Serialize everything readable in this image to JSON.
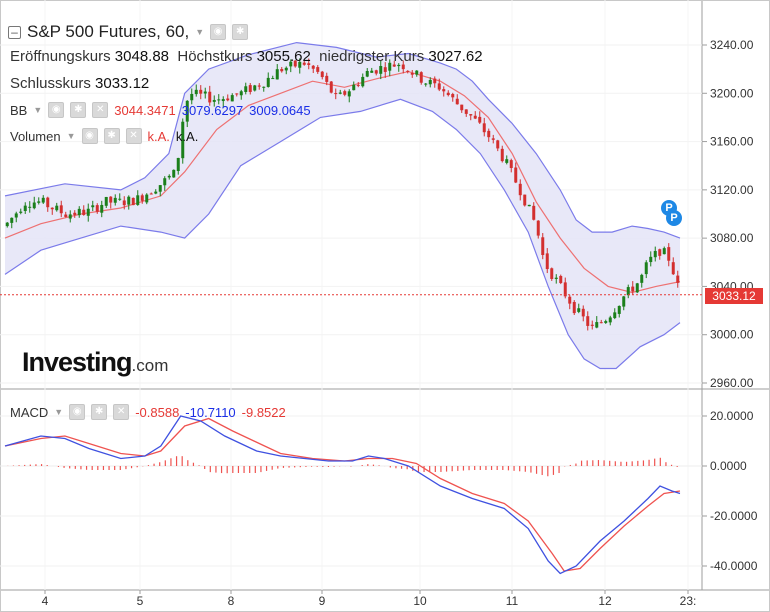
{
  "header": {
    "title": "S&P 500 Futures, 60,",
    "open_label": "Eröffnungskurs",
    "open_value": "3048.88",
    "high_label": "Höchstkurs",
    "high_value": "3055.62",
    "low_label": "niedrigster Kurs",
    "low_value": "3027.62",
    "close_label": "Schlusskurs",
    "close_value": "3033.12"
  },
  "indicators": {
    "bb_label": "BB",
    "bb_middle": "3044.3471",
    "bb_upper": "3079.6297",
    "bb_lower": "3009.0645",
    "volume_label": "Volumen",
    "volume_v1": "k.A.",
    "volume_v2": "k.A.",
    "macd_label": "MACD",
    "macd_hist": "-0.8588",
    "macd_line": "-10.7110",
    "macd_signal": "-9.8522"
  },
  "logo": {
    "main": "Investing",
    "suffix": ".com"
  },
  "current_price_label": "3033.12",
  "badge_label": "P",
  "colors": {
    "up": "#1b7f1b",
    "down": "#d32f2f",
    "bb_band": "#7b7bea",
    "bb_fill": "#e4e4f7",
    "bb_mid": "#ef5350",
    "macd": "#3f51e0",
    "signal": "#ef5350",
    "hist": "#ef5350"
  },
  "chart_data": [
    {
      "type": "candlestick",
      "title": "S&P 500 Futures, 60,",
      "x_ticks": [
        "4",
        "5",
        "8",
        "9",
        "10",
        "11",
        "12",
        "23:"
      ],
      "y_ticks": [
        "3240.00",
        "3200.00",
        "3160.00",
        "3120.00",
        "3080.00",
        "3040.00",
        "3000.00",
        "2960.00"
      ],
      "ylim": [
        2955,
        3255
      ],
      "current_price": 3033.12,
      "close_path": [
        [
          3.55,
          3090
        ],
        [
          3.8,
          3110
        ],
        [
          4.0,
          3110
        ],
        [
          4.3,
          3100
        ],
        [
          4.6,
          3102
        ],
        [
          4.8,
          3110
        ],
        [
          5.0,
          3110
        ],
        [
          5.2,
          3112
        ],
        [
          5.5,
          3125
        ],
        [
          5.7,
          3135
        ],
        [
          5.75,
          3170
        ],
        [
          5.85,
          3200
        ],
        [
          6.2,
          3195
        ],
        [
          6.5,
          3200
        ],
        [
          6.8,
          3210
        ],
        [
          7.0,
          3220
        ],
        [
          7.3,
          3225
        ],
        [
          7.5,
          3215
        ],
        [
          7.7,
          3195
        ],
        [
          7.9,
          3205
        ],
        [
          8.1,
          3218
        ],
        [
          8.3,
          3222
        ],
        [
          8.5,
          3225
        ],
        [
          8.6,
          3220
        ],
        [
          8.8,
          3210
        ],
        [
          9.0,
          3205
        ],
        [
          9.2,
          3192
        ],
        [
          9.4,
          3180
        ],
        [
          9.6,
          3165
        ],
        [
          9.8,
          3145
        ],
        [
          10.0,
          3120
        ],
        [
          10.2,
          3090
        ],
        [
          10.3,
          3060
        ],
        [
          10.5,
          3040
        ],
        [
          10.7,
          3020
        ],
        [
          10.9,
          3005
        ],
        [
          11.1,
          3015
        ],
        [
          11.3,
          3032
        ],
        [
          11.5,
          3045
        ],
        [
          11.6,
          3060
        ],
        [
          11.75,
          3070
        ],
        [
          11.85,
          3065
        ],
        [
          11.93,
          3050
        ],
        [
          12.0,
          3033
        ]
      ],
      "bollinger": {
        "upper": [
          [
            3.55,
            3115
          ],
          [
            4.3,
            3125
          ],
          [
            5.0,
            3120
          ],
          [
            5.3,
            3130
          ],
          [
            5.6,
            3150
          ],
          [
            5.8,
            3200
          ],
          [
            6.1,
            3220
          ],
          [
            6.6,
            3232
          ],
          [
            7.2,
            3242
          ],
          [
            7.7,
            3238
          ],
          [
            8.2,
            3230
          ],
          [
            8.6,
            3233
          ],
          [
            9.0,
            3225
          ],
          [
            9.2,
            3220
          ],
          [
            9.4,
            3210
          ],
          [
            9.6,
            3195
          ],
          [
            9.9,
            3175
          ],
          [
            10.2,
            3150
          ],
          [
            10.5,
            3120
          ],
          [
            10.7,
            3095
          ],
          [
            10.9,
            3085
          ],
          [
            11.15,
            3085
          ],
          [
            11.4,
            3090
          ],
          [
            11.6,
            3088
          ],
          [
            11.8,
            3085
          ],
          [
            12.0,
            3080
          ]
        ],
        "middle": [
          [
            3.55,
            3080
          ],
          [
            4.0,
            3092
          ],
          [
            4.5,
            3100
          ],
          [
            5.0,
            3105
          ],
          [
            5.5,
            3115
          ],
          [
            5.8,
            3135
          ],
          [
            6.2,
            3170
          ],
          [
            6.6,
            3190
          ],
          [
            7.0,
            3200
          ],
          [
            7.4,
            3210
          ],
          [
            7.8,
            3205
          ],
          [
            8.2,
            3212
          ],
          [
            8.6,
            3218
          ],
          [
            9.0,
            3210
          ],
          [
            9.3,
            3198
          ],
          [
            9.6,
            3180
          ],
          [
            9.9,
            3150
          ],
          [
            10.2,
            3110
          ],
          [
            10.5,
            3080
          ],
          [
            10.8,
            3055
          ],
          [
            11.1,
            3040
          ],
          [
            11.4,
            3035
          ],
          [
            11.7,
            3040
          ],
          [
            12.0,
            3044
          ]
        ],
        "lower": [
          [
            3.55,
            3050
          ],
          [
            4.0,
            3070
          ],
          [
            4.5,
            3080
          ],
          [
            5.0,
            3090
          ],
          [
            5.5,
            3085
          ],
          [
            5.8,
            3080
          ],
          [
            6.1,
            3100
          ],
          [
            6.5,
            3140
          ],
          [
            7.0,
            3160
          ],
          [
            7.5,
            3180
          ],
          [
            8.0,
            3185
          ],
          [
            8.5,
            3195
          ],
          [
            8.9,
            3185
          ],
          [
            9.2,
            3170
          ],
          [
            9.5,
            3150
          ],
          [
            9.8,
            3120
          ],
          [
            10.1,
            3085
          ],
          [
            10.35,
            3040
          ],
          [
            10.6,
            3000
          ],
          [
            10.8,
            2980
          ],
          [
            11.0,
            2972
          ],
          [
            11.2,
            2972
          ],
          [
            11.5,
            2990
          ],
          [
            11.8,
            3000
          ],
          [
            12.0,
            3010
          ]
        ]
      }
    },
    {
      "type": "line",
      "title": "MACD",
      "y_ticks": [
        "20.0000",
        "0.0000",
        "-20.0000",
        "-40.0000"
      ],
      "ylim": [
        -45,
        23
      ],
      "macd": [
        [
          3.55,
          8
        ],
        [
          4.0,
          12
        ],
        [
          4.3,
          11
        ],
        [
          4.6,
          7
        ],
        [
          5.0,
          3
        ],
        [
          5.3,
          4
        ],
        [
          5.5,
          8
        ],
        [
          5.75,
          20
        ],
        [
          6.0,
          18
        ],
        [
          6.3,
          12
        ],
        [
          6.7,
          6
        ],
        [
          7.0,
          4
        ],
        [
          7.3,
          3
        ],
        [
          7.6,
          2
        ],
        [
          7.9,
          2
        ],
        [
          8.1,
          4
        ],
        [
          8.3,
          3
        ],
        [
          8.6,
          0
        ],
        [
          9.0,
          -8
        ],
        [
          9.4,
          -13
        ],
        [
          9.8,
          -17
        ],
        [
          10.1,
          -25
        ],
        [
          10.35,
          -38
        ],
        [
          10.5,
          -43
        ],
        [
          10.7,
          -40
        ],
        [
          11.0,
          -30
        ],
        [
          11.3,
          -22
        ],
        [
          11.6,
          -13
        ],
        [
          11.75,
          -8
        ],
        [
          11.9,
          -10
        ],
        [
          12.0,
          -11
        ]
      ],
      "signal": [
        [
          3.55,
          8
        ],
        [
          4.0,
          11
        ],
        [
          4.3,
          12
        ],
        [
          4.6,
          9
        ],
        [
          5.0,
          5
        ],
        [
          5.3,
          4
        ],
        [
          5.5,
          6
        ],
        [
          5.8,
          16
        ],
        [
          6.1,
          19
        ],
        [
          6.4,
          14
        ],
        [
          6.8,
          8
        ],
        [
          7.0,
          5
        ],
        [
          7.4,
          3
        ],
        [
          7.8,
          2
        ],
        [
          8.1,
          3
        ],
        [
          8.4,
          3
        ],
        [
          8.7,
          1
        ],
        [
          9.0,
          -5
        ],
        [
          9.4,
          -11
        ],
        [
          9.8,
          -15
        ],
        [
          10.1,
          -22
        ],
        [
          10.4,
          -35
        ],
        [
          10.55,
          -42
        ],
        [
          10.75,
          -41
        ],
        [
          11.0,
          -33
        ],
        [
          11.3,
          -24
        ],
        [
          11.6,
          -16
        ],
        [
          11.8,
          -11
        ],
        [
          12.0,
          -10
        ]
      ]
    }
  ]
}
